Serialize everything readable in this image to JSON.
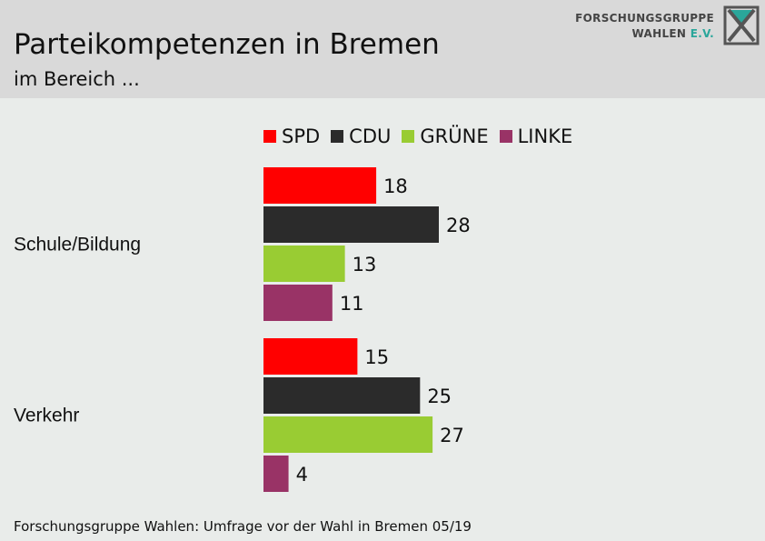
{
  "header": {
    "title": "Parteikompetenzen in Bremen",
    "subtitle": "im Bereich ...",
    "logo": {
      "line1": "FORSCHUNGSGRUPPE",
      "line2_main": "WAHLEN ",
      "line2_accent": "E.V.",
      "icon": "fgw-logo-icon"
    }
  },
  "footer": {
    "source": "Forschungsgruppe Wahlen: Umfrage vor der Wahl in Bremen 05/19"
  },
  "colors": {
    "SPD": "#ff0000",
    "CDU": "#2b2b2b",
    "GRÜNE": "#99cc33",
    "LINKE": "#993366",
    "header_bg": "#d9d9d9",
    "page_bg": "#e9ecea"
  },
  "chart_data": {
    "type": "bar",
    "orientation": "horizontal",
    "categories": [
      "Schule/Bildung",
      "Verkehr"
    ],
    "series": [
      {
        "name": "SPD",
        "values": [
          18,
          15
        ]
      },
      {
        "name": "CDU",
        "values": [
          28,
          25
        ]
      },
      {
        "name": "GRÜNE",
        "values": [
          13,
          27
        ]
      },
      {
        "name": "LINKE",
        "values": [
          11,
          4
        ]
      }
    ],
    "title": "Parteikompetenzen in Bremen",
    "subtitle": "im Bereich ...",
    "xlabel": "",
    "ylabel": "",
    "xlim": [
      0,
      28
    ],
    "grid": false,
    "legend": "top",
    "data_labels": true
  }
}
